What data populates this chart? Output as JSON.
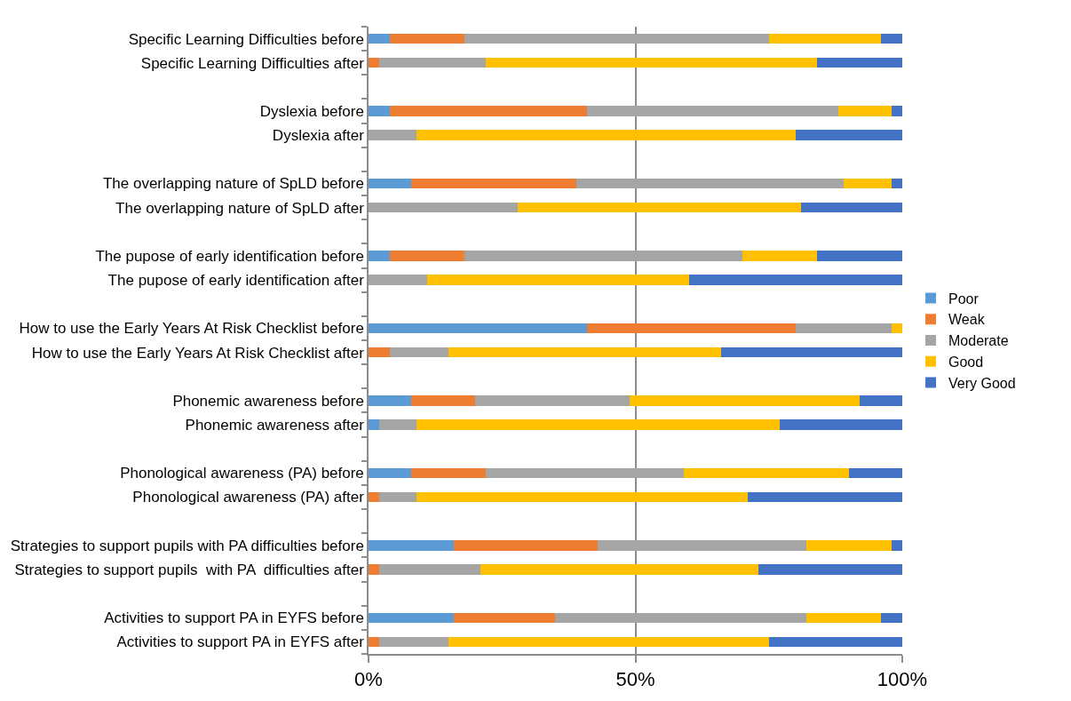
{
  "chart_data": {
    "type": "bar",
    "orientation": "horizontal",
    "stacked": true,
    "categories": [
      "Specific Learning Difficulties before",
      "Specific Learning Difficulties after",
      null,
      "Dyslexia before",
      "Dyslexia after",
      null,
      "The overlapping nature of SpLD before",
      "The overlapping nature of SpLD after",
      null,
      "The pupose of early identification before",
      "The pupose of early identification after",
      null,
      "How to use the Early Years At Risk Checklist before",
      "How to use the Early Years At Risk Checklist after",
      null,
      "Phonemic awareness before",
      "Phonemic awareness after",
      null,
      "Phonological awareness (PA) before",
      "Phonological awareness (PA) after",
      null,
      "Strategies to support pupils with PA difficulties before",
      "Strategies to support pupils  with PA  difficulties after",
      null,
      "Activities to support PA in EYFS before",
      "Activities to support PA in EYFS after"
    ],
    "series": [
      {
        "name": "Poor",
        "color": "#5b9bd5",
        "values": [
          4,
          0,
          null,
          4,
          0,
          null,
          8,
          0,
          null,
          4,
          0,
          null,
          41,
          0,
          null,
          8,
          2,
          null,
          8,
          0,
          null,
          16,
          0,
          null,
          16,
          0
        ]
      },
      {
        "name": "Weak",
        "color": "#ed7d31",
        "values": [
          14,
          2,
          null,
          37,
          0,
          null,
          31,
          0,
          null,
          14,
          0,
          null,
          39,
          4,
          null,
          12,
          0,
          null,
          14,
          2,
          null,
          27,
          2,
          null,
          19,
          2
        ]
      },
      {
        "name": "Moderate",
        "color": "#a5a5a5",
        "values": [
          57,
          20,
          null,
          47,
          9,
          null,
          50,
          28,
          null,
          52,
          11,
          null,
          18,
          11,
          null,
          29,
          7,
          null,
          37,
          7,
          null,
          39,
          19,
          null,
          47,
          13
        ]
      },
      {
        "name": "Good",
        "color": "#ffc000",
        "values": [
          21,
          62,
          null,
          10,
          71,
          null,
          9,
          53,
          null,
          14,
          49,
          null,
          2,
          51,
          null,
          43,
          68,
          null,
          31,
          62,
          null,
          16,
          52,
          null,
          14,
          60
        ]
      },
      {
        "name": "Very Good",
        "color": "#4472c4",
        "values": [
          4,
          16,
          null,
          2,
          20,
          null,
          2,
          19,
          null,
          16,
          40,
          null,
          0,
          34,
          null,
          8,
          23,
          null,
          10,
          29,
          null,
          2,
          27,
          null,
          4,
          25
        ]
      }
    ],
    "xlim": [
      0,
      100
    ],
    "xticks": [
      {
        "value": 0,
        "label": "0%"
      },
      {
        "value": 50,
        "label": "50%"
      },
      {
        "value": 100,
        "label": "100%"
      }
    ],
    "grid": "x",
    "legend": "right"
  }
}
